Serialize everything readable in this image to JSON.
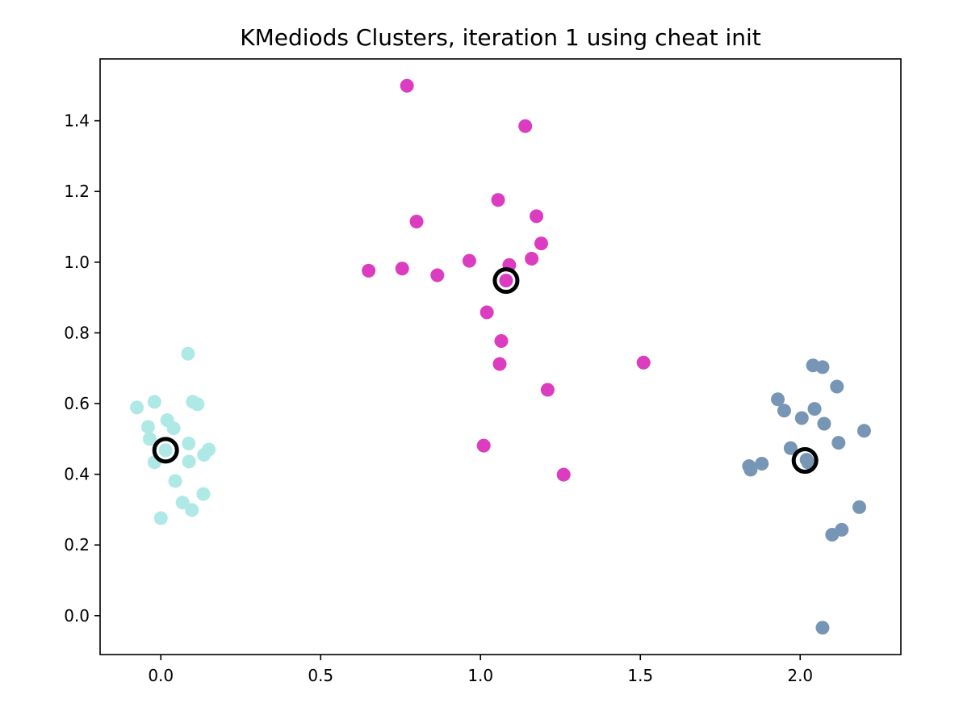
{
  "chart_data": {
    "type": "scatter",
    "title": "KMediods Clusters, iteration 1 using cheat init",
    "xlabel": "",
    "ylabel": "",
    "xlim": [
      -0.19,
      2.315
    ],
    "ylim": [
      -0.11,
      1.575
    ],
    "x_ticks": [
      0.0,
      0.5,
      1.0,
      1.5,
      2.0
    ],
    "y_ticks": [
      0.0,
      0.2,
      0.4,
      0.6,
      0.8,
      1.0,
      1.2,
      1.4
    ],
    "x_tick_labels": [
      "0.0",
      "0.5",
      "1.0",
      "1.5",
      "2.0"
    ],
    "y_tick_labels": [
      "0.0",
      "0.2",
      "0.4",
      "0.6",
      "0.8",
      "1.0",
      "1.2",
      "1.4"
    ],
    "grid": false,
    "series": [
      {
        "color": "#aee9e6",
        "points": [
          [
            0.085,
            0.741
          ],
          [
            -0.02,
            0.605
          ],
          [
            0.1,
            0.605
          ],
          [
            0.115,
            0.598
          ],
          [
            -0.075,
            0.589
          ],
          [
            0.02,
            0.553
          ],
          [
            -0.04,
            0.534
          ],
          [
            0.04,
            0.53
          ],
          [
            -0.035,
            0.5
          ],
          [
            0.087,
            0.487
          ],
          [
            0.15,
            0.47
          ],
          [
            0.015,
            0.468
          ],
          [
            0.135,
            0.455
          ],
          [
            -0.02,
            0.434
          ],
          [
            0.088,
            0.436
          ],
          [
            0.045,
            0.381
          ],
          [
            0.133,
            0.344
          ],
          [
            0.068,
            0.32
          ],
          [
            0.097,
            0.299
          ],
          [
            0.0,
            0.276
          ]
        ]
      },
      {
        "color": "#dc3cc0",
        "points": [
          [
            0.77,
            1.499
          ],
          [
            1.14,
            1.385
          ],
          [
            1.055,
            1.176
          ],
          [
            1.175,
            1.13
          ],
          [
            0.8,
            1.115
          ],
          [
            1.19,
            1.053
          ],
          [
            1.16,
            1.01
          ],
          [
            0.965,
            1.004
          ],
          [
            1.09,
            0.992
          ],
          [
            0.755,
            0.982
          ],
          [
            0.65,
            0.976
          ],
          [
            0.865,
            0.963
          ],
          [
            1.08,
            0.948
          ],
          [
            1.02,
            0.858
          ],
          [
            1.065,
            0.777
          ],
          [
            1.51,
            0.716
          ],
          [
            1.06,
            0.712
          ],
          [
            1.21,
            0.639
          ],
          [
            1.01,
            0.481
          ],
          [
            1.26,
            0.399
          ]
        ]
      },
      {
        "color": "#7796b5",
        "points": [
          [
            2.04,
            0.708
          ],
          [
            2.07,
            0.703
          ],
          [
            2.115,
            0.648
          ],
          [
            1.93,
            0.612
          ],
          [
            2.045,
            0.585
          ],
          [
            1.95,
            0.58
          ],
          [
            2.005,
            0.559
          ],
          [
            2.075,
            0.543
          ],
          [
            2.2,
            0.523
          ],
          [
            2.12,
            0.489
          ],
          [
            1.97,
            0.474
          ],
          [
            2.02,
            0.441
          ],
          [
            2.025,
            0.433
          ],
          [
            1.88,
            0.43
          ],
          [
            1.84,
            0.423
          ],
          [
            1.845,
            0.413
          ],
          [
            2.185,
            0.307
          ],
          [
            2.13,
            0.243
          ],
          [
            2.1,
            0.229
          ],
          [
            2.07,
            -0.034
          ]
        ]
      }
    ],
    "medoids": {
      "color": "#000000",
      "points": [
        [
          0.015,
          0.468
        ],
        [
          1.08,
          0.948
        ],
        [
          2.015,
          0.439
        ]
      ]
    }
  }
}
